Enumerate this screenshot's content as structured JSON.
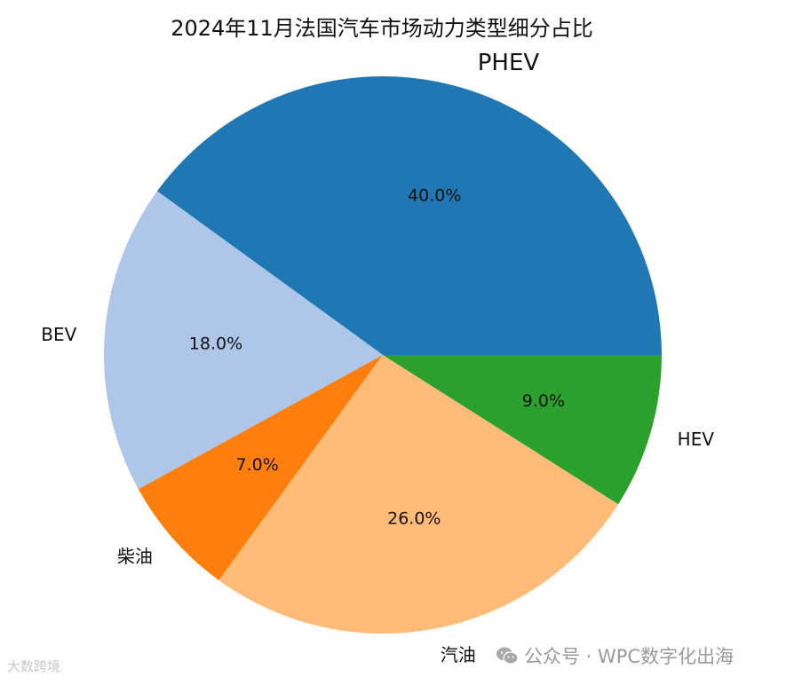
{
  "chart_data": {
    "type": "pie",
    "title": "2024年11月法国汽车市场动力类型细分占比",
    "categories": [
      "PHEV",
      "BEV",
      "柴油",
      "汽油",
      "HEV"
    ],
    "values": [
      40.0,
      18.0,
      7.0,
      26.0,
      9.0
    ],
    "value_labels": [
      "40.0%",
      "18.0%",
      "7.0%",
      "26.0%",
      "9.0%"
    ],
    "colors": [
      "#1f77b4",
      "#aec7e8",
      "#ff7f0e",
      "#ffbb78",
      "#2ca02c"
    ],
    "start_angle_deg": 0,
    "direction": "counterclockwise"
  },
  "watermarks": {
    "left": "大数跨境",
    "right": "公众号 · WPC数字化出海"
  },
  "icons": {
    "wechat": "wechat-icon"
  }
}
